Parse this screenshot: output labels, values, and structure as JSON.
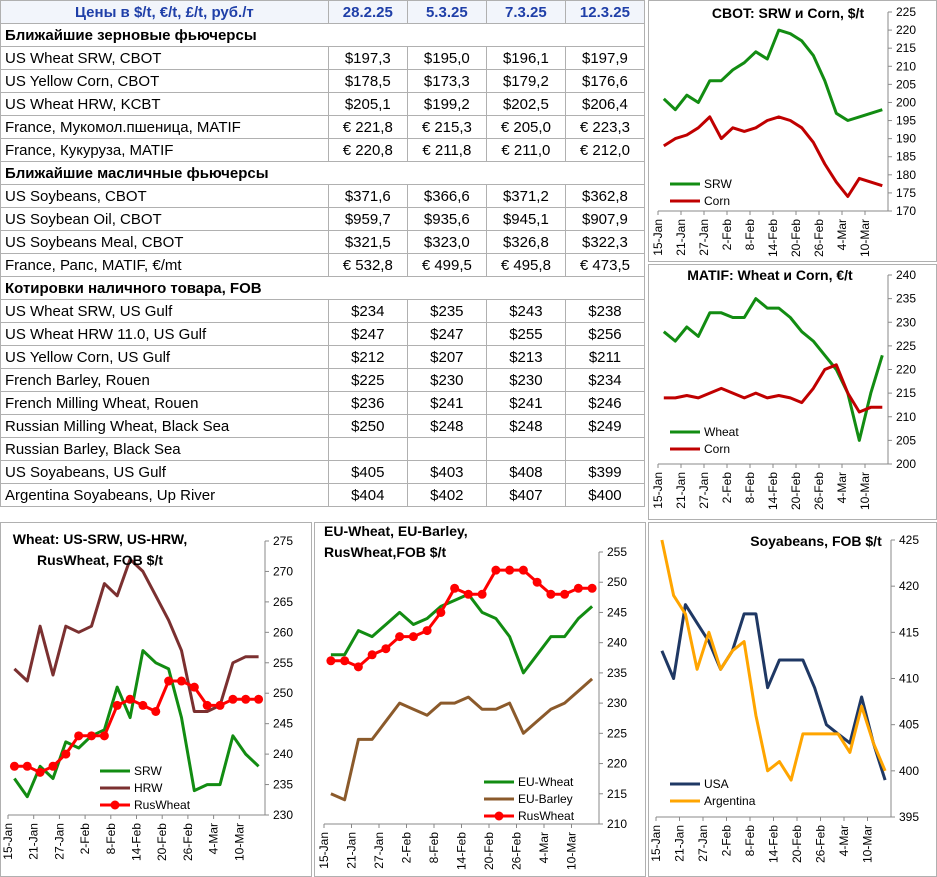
{
  "table": {
    "header": [
      "Цены в  $/t, €/t, £/t, руб./т",
      "28.2.25",
      "5.3.25",
      "7.3.25",
      "12.3.25"
    ],
    "sections": [
      {
        "title": "Ближайшие зерновые фьючерсы",
        "rows": [
          [
            "US Wheat SRW, CBOT",
            "$197,3",
            "$195,0",
            "$196,1",
            "$197,9"
          ],
          [
            "US Yellow Corn, CBOT",
            "$178,5",
            "$173,3",
            "$179,2",
            "$176,6"
          ],
          [
            "US Wheat HRW, KCBT",
            "$205,1",
            "$199,2",
            "$202,5",
            "$206,4"
          ],
          [
            "France, Мукомол.пшеница, MATIF",
            "€ 221,8",
            "€ 215,3",
            "€ 205,0",
            "€ 223,3"
          ],
          [
            "France, Кукуруза, MATIF",
            "€ 220,8",
            "€ 211,8",
            "€ 211,0",
            "€ 212,0"
          ]
        ]
      },
      {
        "title": "Ближайшие масличные фьючерсы",
        "rows": [
          [
            "US Soybeans, CBOT",
            "$371,6",
            "$366,6",
            "$371,2",
            "$362,8"
          ],
          [
            "US Soybean Oil, CBOT",
            "$959,7",
            "$935,6",
            "$945,1",
            "$907,9"
          ],
          [
            "US Soybeans Meal, CBOT",
            "$321,5",
            "$323,0",
            "$326,8",
            "$322,3"
          ],
          [
            "France, Рапс, MATIF, €/mt",
            "€ 532,8",
            "€ 499,5",
            "€ 495,8",
            "€ 473,5"
          ]
        ]
      },
      {
        "title": "Котировки наличного товара, FOB",
        "rows": [
          [
            "US Wheat SRW, US Gulf",
            "$234",
            "$235",
            "$243",
            "$238"
          ],
          [
            "US Wheat HRW 11.0, US Gulf",
            "$247",
            "$247",
            "$255",
            "$256"
          ],
          [
            "US Yellow Corn, US Gulf",
            "$212",
            "$207",
            "$213",
            "$211"
          ],
          [
            "French Barley, Rouen",
            "$225",
            "$230",
            "$230",
            "$234"
          ],
          [
            "French Milling Wheat, Rouen",
            "$236",
            "$241",
            "$241",
            "$246"
          ],
          [
            "Russian Milling Wheat, Black Sea",
            "$250",
            "$248",
            "$248",
            "$249"
          ],
          [
            "Russian Barley, Black Sea"
          ],
          [
            "US Soyabeans, US Gulf",
            "$405",
            "$403",
            "$408",
            "$399"
          ],
          [
            "Argentina Soyabeans, Up River",
            "$404",
            "$402",
            "$407",
            "$400"
          ]
        ]
      }
    ]
  },
  "chart_data": [
    {
      "type": "line",
      "title": [
        "CBOT: SRW и Corn, $/t"
      ],
      "categories": [
        "15-Jan",
        null,
        "21-Jan",
        null,
        "27-Jan",
        null,
        "2-Feb",
        null,
        "8-Feb",
        null,
        "14-Feb",
        null,
        "20-Feb",
        null,
        "26-Feb",
        null,
        "4-Mar",
        null,
        "10-Mar",
        null
      ],
      "ylim": [
        170,
        225
      ],
      "yticks": [
        170,
        175,
        180,
        185,
        190,
        195,
        200,
        205,
        210,
        215,
        220,
        225
      ],
      "y_axis_side": "right",
      "legend": "lower left",
      "series": [
        {
          "name": "SRW",
          "color": "#128c12",
          "values": [
            201,
            198,
            202,
            200,
            206,
            206,
            209,
            211,
            214,
            212,
            220,
            219,
            217,
            213,
            206,
            197,
            195,
            196,
            197,
            198
          ]
        },
        {
          "name": "Corn",
          "color": "#c00000",
          "values": [
            188,
            190,
            191,
            193,
            196,
            190,
            193,
            192,
            193,
            195,
            196,
            195,
            193,
            189,
            183,
            178,
            174,
            179,
            178,
            177
          ]
        }
      ]
    },
    {
      "type": "line",
      "title": [
        "MATIF: Wheat и Corn, €/t"
      ],
      "categories": [
        "15-Jan",
        null,
        "21-Jan",
        null,
        "27-Jan",
        null,
        "2-Feb",
        null,
        "8-Feb",
        null,
        "14-Feb",
        null,
        "20-Feb",
        null,
        "26-Feb",
        null,
        "4-Mar",
        null,
        "10-Mar",
        null
      ],
      "ylim": [
        200,
        240
      ],
      "yticks": [
        200,
        205,
        210,
        215,
        220,
        225,
        230,
        235,
        240
      ],
      "y_axis_side": "right",
      "legend": "lower left",
      "series": [
        {
          "name": "Wheat",
          "color": "#128c12",
          "values": [
            228,
            226,
            229,
            227,
            232,
            232,
            231,
            231,
            235,
            233,
            233,
            231,
            228,
            226,
            223,
            220,
            215,
            205,
            215,
            223
          ]
        },
        {
          "name": "Corn",
          "color": "#c00000",
          "values": [
            214,
            214,
            214.5,
            214,
            215,
            216,
            215,
            214,
            215,
            214,
            214.5,
            214,
            213,
            216,
            220,
            221,
            215,
            211,
            212,
            212
          ]
        }
      ]
    },
    {
      "type": "line",
      "title": [
        "Wheat: US-SRW, US-HRW,",
        "RusWheat, FOB $/t"
      ],
      "categories": [
        "15-Jan",
        null,
        "21-Jan",
        null,
        "27-Jan",
        null,
        "2-Feb",
        null,
        "8-Feb",
        null,
        "14-Feb",
        null,
        "20-Feb",
        null,
        "26-Feb",
        null,
        "4-Mar",
        null,
        "10-Mar",
        null
      ],
      "ylim": [
        230,
        275
      ],
      "yticks": [
        230,
        235,
        240,
        245,
        250,
        255,
        260,
        265,
        270,
        275
      ],
      "y_axis_side": "right",
      "legend": "lower center",
      "series": [
        {
          "name": "SRW",
          "color": "#128c12",
          "values": [
            236,
            233,
            238,
            236,
            242,
            241,
            243,
            244,
            251,
            246,
            257,
            255,
            254,
            246,
            234,
            235,
            235,
            243,
            240,
            238
          ]
        },
        {
          "name": "HRW",
          "color": "#7b3030",
          "values": [
            254,
            252,
            261,
            253,
            261,
            260,
            261,
            268,
            266,
            272,
            270,
            266,
            262,
            257,
            247,
            247,
            248,
            255,
            256,
            256
          ]
        },
        {
          "name": "RusWheat",
          "color": "#ff0000",
          "marker": "circle",
          "values": [
            238,
            238,
            237,
            238,
            240,
            243,
            243,
            243,
            248,
            249,
            248,
            247,
            252,
            252,
            251,
            248,
            248,
            249,
            249,
            249
          ]
        }
      ]
    },
    {
      "type": "line",
      "title": [
        "EU-Wheat, EU-Barley,",
        "RusWheat,FOB $/t"
      ],
      "categories": [
        "15-Jan",
        null,
        "21-Jan",
        null,
        "27-Jan",
        null,
        "2-Feb",
        null,
        "8-Feb",
        null,
        "14-Feb",
        null,
        "20-Feb",
        null,
        "26-Feb",
        null,
        "4-Mar",
        null,
        "10-Mar",
        null
      ],
      "ylim": [
        210,
        255
      ],
      "yticks": [
        210,
        215,
        220,
        225,
        230,
        235,
        240,
        245,
        250,
        255
      ],
      "y_axis_side": "right",
      "legend": "lower right",
      "series": [
        {
          "name": "EU-Wheat",
          "color": "#128c12",
          "values": [
            238,
            238,
            242,
            241,
            243,
            245,
            243,
            244,
            246,
            247,
            248,
            245,
            244,
            241,
            235,
            238,
            241,
            241,
            244,
            246
          ]
        },
        {
          "name": "EU-Barley",
          "color": "#8b5a2b",
          "values": [
            215,
            214,
            224,
            224,
            227,
            230,
            229,
            228,
            230,
            230,
            231,
            229,
            229,
            230,
            225,
            227,
            229,
            230,
            232,
            234
          ]
        },
        {
          "name": "RusWheat",
          "color": "#ff0000",
          "marker": "circle",
          "values": [
            237,
            237,
            236,
            238,
            239,
            241,
            241,
            242,
            245,
            249,
            248,
            248,
            252,
            252,
            252,
            250,
            248,
            248,
            249,
            249
          ]
        }
      ]
    },
    {
      "type": "line",
      "title": [
        "Soyabeans, FOB $/t"
      ],
      "categories": [
        "15-Jan",
        null,
        "21-Jan",
        null,
        "27-Jan",
        null,
        "2-Feb",
        null,
        "8-Feb",
        null,
        "14-Feb",
        null,
        "20-Feb",
        null,
        "26-Feb",
        null,
        "4-Mar",
        null,
        "10-Mar",
        null
      ],
      "ylim": [
        395,
        425
      ],
      "yticks": [
        395,
        400,
        405,
        410,
        415,
        420,
        425
      ],
      "y_axis_side": "right",
      "legend": "lower left",
      "series": [
        {
          "name": "USA",
          "color": "#1f3864",
          "values": [
            413,
            410,
            418,
            416,
            414,
            411,
            413,
            417,
            417,
            409,
            412,
            412,
            412,
            409,
            405,
            404,
            403,
            408,
            403,
            399
          ]
        },
        {
          "name": "Argentina",
          "color": "#ffa500",
          "values": [
            425,
            419,
            417,
            411,
            415,
            411,
            413,
            414,
            406,
            400,
            401,
            399,
            404,
            404,
            404,
            404,
            402,
            407,
            403,
            400
          ]
        }
      ]
    }
  ]
}
